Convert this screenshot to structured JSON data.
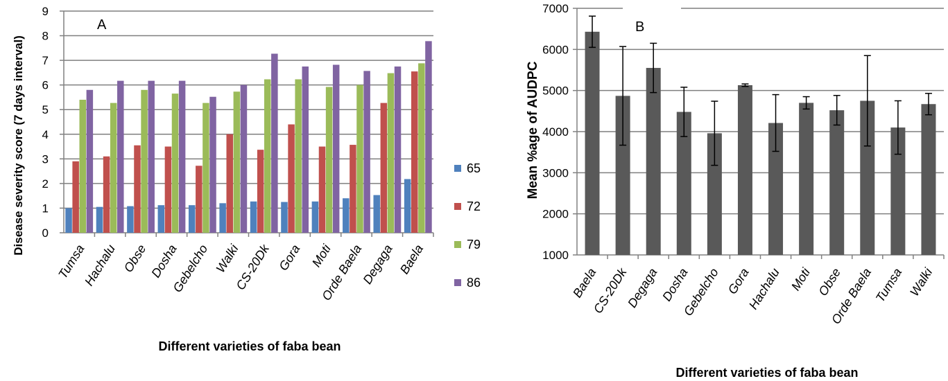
{
  "chart_data": [
    {
      "type": "bar",
      "panel_label": "A",
      "xlabel": "Different varieties of faba bean",
      "ylabel": "Disease severity score (7 days interval)",
      "ylim": [
        0,
        9
      ],
      "yticks": [
        "0",
        "1",
        "2",
        "3",
        "4",
        "5",
        "6",
        "7",
        "8",
        "9"
      ],
      "grid": true,
      "legend_position": "right",
      "categories": [
        "Tumsa",
        "Hachalu",
        "Obse",
        "Dosha",
        "Gebelcho",
        "Walki",
        "CS-20Dk",
        "Gora",
        "Moti",
        "Orde Baela",
        "Degaga",
        "Baela"
      ],
      "series": [
        {
          "name": "65",
          "color": "#4f81bd",
          "values": [
            1.0,
            1.05,
            1.08,
            1.12,
            1.12,
            1.2,
            1.27,
            1.25,
            1.27,
            1.4,
            1.53,
            2.18
          ]
        },
        {
          "name": "72",
          "color": "#c0504d",
          "values": [
            2.9,
            3.1,
            3.55,
            3.5,
            2.72,
            4.0,
            3.37,
            4.4,
            3.5,
            3.57,
            5.27,
            6.55
          ]
        },
        {
          "name": "79",
          "color": "#9bbb59",
          "values": [
            5.4,
            5.27,
            5.8,
            5.65,
            5.27,
            5.73,
            6.23,
            6.23,
            5.92,
            6.0,
            6.48,
            6.88
          ]
        },
        {
          "name": "86",
          "color": "#8064a2",
          "values": [
            5.8,
            6.17,
            6.17,
            6.17,
            5.52,
            6.0,
            7.27,
            6.75,
            6.82,
            6.57,
            6.75,
            7.78
          ]
        }
      ]
    },
    {
      "type": "bar",
      "panel_label": "B",
      "xlabel": "Different varieties of faba bean",
      "ylabel": "Mean %age of AUDPC",
      "ylim": [
        1000,
        7000
      ],
      "yticks": [
        "1000",
        "2000",
        "3000",
        "4000",
        "5000",
        "6000",
        "7000"
      ],
      "grid": true,
      "color": "#595959",
      "categories": [
        "Baela",
        "CS-20Dk",
        "Degaga",
        "Dosha",
        "Gebelcho",
        "Gora",
        "Hachalu",
        "Moti",
        "Obse",
        "Orde Baela",
        "Tumsa",
        "Walki"
      ],
      "series": [
        {
          "values": [
            6430,
            4870,
            5550,
            4480,
            3960,
            5130,
            4210,
            4700,
            4520,
            4750,
            4100,
            4670
          ],
          "error": [
            380,
            1200,
            600,
            600,
            780,
            30,
            690,
            150,
            360,
            1100,
            650,
            260
          ]
        }
      ]
    }
  ]
}
